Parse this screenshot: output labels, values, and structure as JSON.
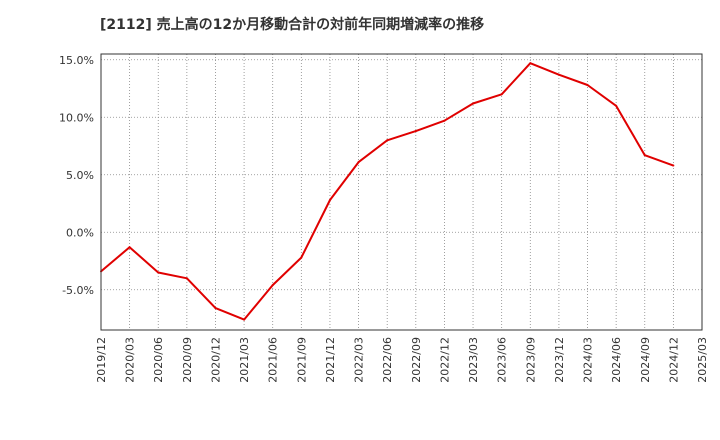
{
  "chart_data": {
    "type": "line",
    "title": "[2112]  売上高の12か月移動合計の対前年同期増減率の推移",
    "xlabel": "",
    "ylabel": "",
    "x_tick_labels": [
      "2019/12",
      "2020/03",
      "2020/06",
      "2020/09",
      "2020/12",
      "2021/03",
      "2021/06",
      "2021/09",
      "2021/12",
      "2022/03",
      "2022/06",
      "2022/09",
      "2022/12",
      "2023/03",
      "2023/06",
      "2023/09",
      "2023/12",
      "2024/03",
      "2024/06",
      "2024/09",
      "2024/12",
      "2025/03"
    ],
    "y_ticks": [
      15,
      10,
      5,
      0,
      -5
    ],
    "y_tick_labels": [
      "15.0%",
      "10.0%",
      "5.0%",
      "0.0%",
      "-5.0%"
    ],
    "ylim": [
      -8.5,
      15.5
    ],
    "grid": true,
    "series": [
      {
        "name": "対前年同期増減率",
        "color": "#e00000",
        "x": [
          "2019/12",
          "2020/03",
          "2020/06",
          "2020/09",
          "2020/12",
          "2021/03",
          "2021/06",
          "2021/09",
          "2021/12",
          "2022/03",
          "2022/06",
          "2022/09",
          "2022/12",
          "2023/03",
          "2023/06",
          "2023/09",
          "2023/12",
          "2024/03",
          "2024/06",
          "2024/09",
          "2024/12"
        ],
        "values": [
          -3.4,
          -1.3,
          -3.5,
          -4.0,
          -6.6,
          -7.6,
          -4.6,
          -2.2,
          2.8,
          6.1,
          8.0,
          8.8,
          9.7,
          11.2,
          12.0,
          14.7,
          13.7,
          12.8,
          11.0,
          6.7,
          5.8
        ]
      }
    ]
  }
}
